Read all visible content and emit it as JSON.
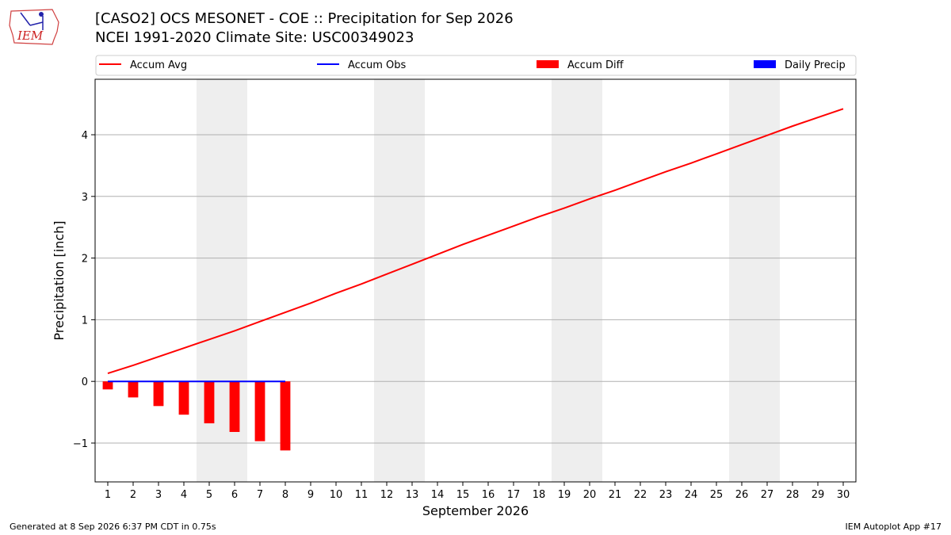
{
  "header": {
    "title_line1": "[CASO2] OCS MESONET - COE :: Precipitation for Sep 2026",
    "title_line2": "NCEI 1991-2020 Climate Site: USC00349023",
    "logo_text": "IEM"
  },
  "footer": {
    "generated": "Generated at 8 Sep 2026 6:37 PM CDT in 0.75s",
    "app": "IEM Autoplot App #17"
  },
  "chart_data": {
    "type": "line",
    "xlabel": "September 2026",
    "ylabel": "Precipitation [inch]",
    "x_ticks": [
      1,
      2,
      3,
      4,
      5,
      6,
      7,
      8,
      9,
      10,
      11,
      12,
      13,
      14,
      15,
      16,
      17,
      18,
      19,
      20,
      21,
      22,
      23,
      24,
      25,
      26,
      27,
      28,
      29,
      30
    ],
    "y_ticks": [
      -1,
      0,
      1,
      2,
      3,
      4
    ],
    "y_tick_labels": [
      "−1",
      "0",
      "1",
      "2",
      "3",
      "4"
    ],
    "xlim": [
      0.5,
      30.5
    ],
    "ylim": [
      -1.63,
      4.9
    ],
    "grid": "horizontal",
    "legend_position": "top",
    "weekend_shading": [
      [
        4.5,
        6.5
      ],
      [
        11.5,
        13.5
      ],
      [
        18.5,
        20.5
      ],
      [
        25.5,
        27.5
      ]
    ],
    "legend": [
      {
        "label": "Accum Avg",
        "kind": "line",
        "color": "#ff0000"
      },
      {
        "label": "Accum Obs",
        "kind": "line",
        "color": "#0000ff"
      },
      {
        "label": "Accum Diff",
        "kind": "bar",
        "color": "#ff0000"
      },
      {
        "label": "Daily Precip",
        "kind": "bar",
        "color": "#0000ff"
      }
    ],
    "series": [
      {
        "name": "Accum Avg",
        "color": "#ff0000",
        "x": [
          1,
          2,
          3,
          4,
          5,
          6,
          7,
          8,
          9,
          10,
          11,
          12,
          13,
          14,
          15,
          16,
          17,
          18,
          19,
          20,
          21,
          22,
          23,
          24,
          25,
          26,
          27,
          28,
          29,
          30
        ],
        "values": [
          0.13,
          0.26,
          0.4,
          0.54,
          0.68,
          0.82,
          0.97,
          1.12,
          1.27,
          1.43,
          1.58,
          1.74,
          1.9,
          2.06,
          2.22,
          2.37,
          2.52,
          2.67,
          2.81,
          2.96,
          3.1,
          3.25,
          3.4,
          3.54,
          3.69,
          3.84,
          3.99,
          4.14,
          4.28,
          4.42
        ]
      },
      {
        "name": "Accum Obs",
        "color": "#0000ff",
        "x": [
          1,
          2,
          3,
          4,
          5,
          6,
          7,
          8
        ],
        "values": [
          0,
          0,
          0,
          0,
          0,
          0,
          0,
          0
        ]
      },
      {
        "name": "Accum Diff",
        "color": "#ff0000",
        "x": [
          1,
          2,
          3,
          4,
          5,
          6,
          7,
          8
        ],
        "values": [
          -0.13,
          -0.26,
          -0.4,
          -0.54,
          -0.68,
          -0.82,
          -0.97,
          -1.12
        ]
      },
      {
        "name": "Daily Precip",
        "color": "#0000ff",
        "x": [
          1,
          2,
          3,
          4,
          5,
          6,
          7,
          8
        ],
        "values": [
          0,
          0,
          0,
          0,
          0,
          0,
          0,
          0
        ]
      }
    ]
  }
}
